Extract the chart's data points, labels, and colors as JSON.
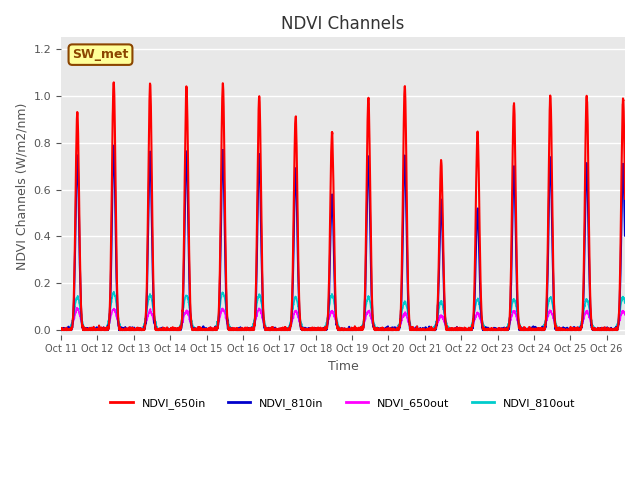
{
  "title": "NDVI Channels",
  "xlabel": "Time",
  "ylabel": "NDVI Channels (W/m2/nm)",
  "ylim": [
    -0.02,
    1.25
  ],
  "xlim": [
    0,
    15.5
  ],
  "bg_color": "#e8e8e8",
  "grid_color": "white",
  "annotation_text": "SW_met",
  "annotation_bg": "#ffff99",
  "annotation_border": "#8B4500",
  "tick_labels": [
    "Oct 11",
    "Oct 12",
    "Oct 13",
    "Oct 14",
    "Oct 15",
    "Oct 16",
    "Oct 17",
    "Oct 18",
    "Oct 19",
    "Oct 20",
    "Oct 21",
    "Oct 22",
    "Oct 23",
    "Oct 24",
    "Oct 25",
    "Oct 26"
  ],
  "series": {
    "NDVI_650in": {
      "color": "#ff0000",
      "lw": 1.5
    },
    "NDVI_810in": {
      "color": "#0000cc",
      "lw": 1.5
    },
    "NDVI_650out": {
      "color": "#ff00ff",
      "lw": 1.2
    },
    "NDVI_810out": {
      "color": "#00cccc",
      "lw": 1.2
    }
  },
  "peaks_650in": [
    0.93,
    1.06,
    1.05,
    1.04,
    1.05,
    1.0,
    0.91,
    0.84,
    0.99,
    1.04,
    0.72,
    0.84,
    0.97,
    1.0,
    1.0,
    0.99
  ],
  "peaks_810in": [
    0.74,
    0.79,
    0.76,
    0.76,
    0.77,
    0.75,
    0.69,
    0.58,
    0.74,
    0.75,
    0.55,
    0.52,
    0.7,
    0.74,
    0.71,
    0.71
  ],
  "peaks_650out": [
    0.09,
    0.09,
    0.08,
    0.08,
    0.09,
    0.09,
    0.08,
    0.08,
    0.08,
    0.07,
    0.06,
    0.07,
    0.08,
    0.08,
    0.08,
    0.08
  ],
  "peaks_810out": [
    0.14,
    0.16,
    0.15,
    0.15,
    0.16,
    0.15,
    0.14,
    0.15,
    0.14,
    0.12,
    0.12,
    0.13,
    0.13,
    0.14,
    0.13,
    0.14
  ]
}
